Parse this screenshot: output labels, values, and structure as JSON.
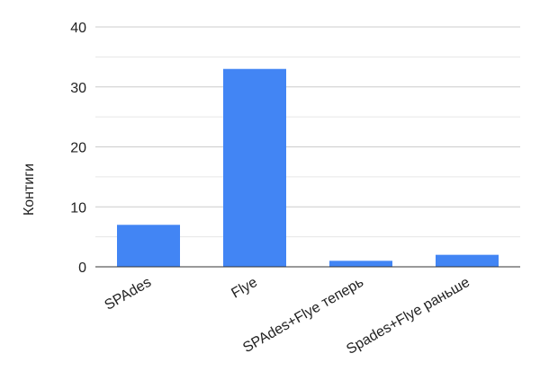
{
  "chart_data": {
    "type": "bar",
    "title": "",
    "xlabel": "",
    "ylabel": "Контиги",
    "categories": [
      "SPAdes",
      "Flye",
      "SPAdes+Flye теперь",
      "Spades+Flye раньше"
    ],
    "series": [
      {
        "values": [
          7,
          33,
          1,
          2
        ]
      }
    ],
    "ylim": [
      0,
      40
    ],
    "y_ticks": [
      "0",
      "10",
      "20",
      "30",
      "40"
    ],
    "grid": true,
    "minor_grid": true,
    "bar_color": "#4285F4"
  }
}
